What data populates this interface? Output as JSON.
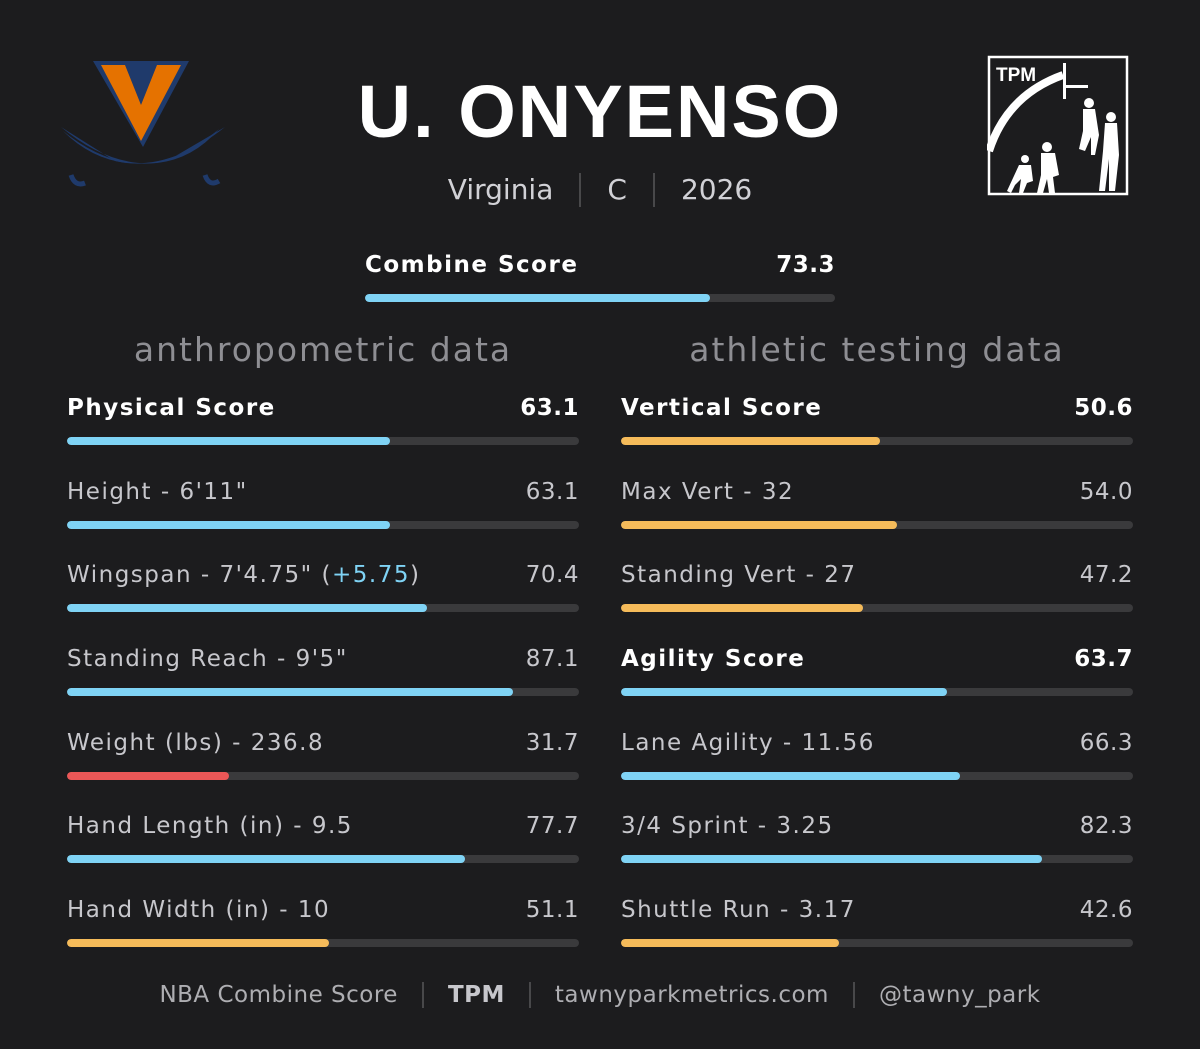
{
  "header": {
    "player_name": "U. ONYENSO",
    "team": "Virginia",
    "position": "C",
    "year": "2026",
    "brand_logo_text": "TPM",
    "team_logo": "virginia-v-sabres-icon"
  },
  "colors": {
    "background": "#1c1c1e",
    "blue": "#7fd3f5",
    "orange": "#f5bb5a",
    "red": "#eb5757",
    "track": "#3a3a3c"
  },
  "combine": {
    "label": "Combine Score",
    "value": "73.3",
    "pct": 73.3,
    "color": "blue"
  },
  "anthro": {
    "title": "anthropometric data",
    "metrics": [
      {
        "label": "Physical Score",
        "value": "63.1",
        "pct": 63.1,
        "color": "blue",
        "bold": true
      },
      {
        "label": "Height - 6'11\"",
        "value": "63.1",
        "pct": 63.1,
        "color": "blue"
      },
      {
        "label": "Wingspan - 7'4.75\" (",
        "extra": "+5.75",
        "suffix": ")",
        "value": "70.4",
        "pct": 70.4,
        "color": "blue"
      },
      {
        "label": "Standing Reach - 9'5\"",
        "value": "87.1",
        "pct": 87.1,
        "color": "blue"
      },
      {
        "label": "Weight (lbs) - 236.8",
        "value": "31.7",
        "pct": 31.7,
        "color": "red"
      },
      {
        "label": "Hand Length (in) - 9.5",
        "value": "77.7",
        "pct": 77.7,
        "color": "blue"
      },
      {
        "label": "Hand Width (in) - 10",
        "value": "51.1",
        "pct": 51.1,
        "color": "orange"
      }
    ]
  },
  "athletic": {
    "title": "athletic testing data",
    "metrics": [
      {
        "label": "Vertical Score",
        "value": "50.6",
        "pct": 50.6,
        "color": "orange",
        "bold": true
      },
      {
        "label": "Max Vert - 32",
        "value": "54.0",
        "pct": 54.0,
        "color": "orange"
      },
      {
        "label": "Standing Vert - 27",
        "value": "47.2",
        "pct": 47.2,
        "color": "orange"
      },
      {
        "label": "Agility Score",
        "value": "63.7",
        "pct": 63.7,
        "color": "blue",
        "bold": true
      },
      {
        "label": "Lane Agility - 11.56",
        "value": "66.3",
        "pct": 66.3,
        "color": "blue"
      },
      {
        "label": "3/4 Sprint - 3.25",
        "value": "82.3",
        "pct": 82.3,
        "color": "blue"
      },
      {
        "label": "Shuttle Run - 3.17",
        "value": "42.6",
        "pct": 42.6,
        "color": "orange"
      }
    ]
  },
  "footer": {
    "title": "NBA Combine Score",
    "brand": "TPM",
    "site": "tawnyparkmetrics.com",
    "handle": "@tawny_park"
  }
}
